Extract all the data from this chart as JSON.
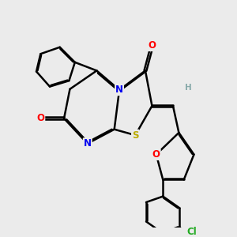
{
  "bg_color": "#ebebeb",
  "bond_color": "#000000",
  "bond_width": 1.8,
  "atom_colors": {
    "N": "#0000ee",
    "O": "#ff0000",
    "S": "#bbaa00",
    "Cl": "#22aa22",
    "H": "#88aaaa",
    "C": "#000000"
  },
  "font_size": 8.5,
  "fig_width": 3.0,
  "fig_height": 3.0,
  "dpi": 100
}
